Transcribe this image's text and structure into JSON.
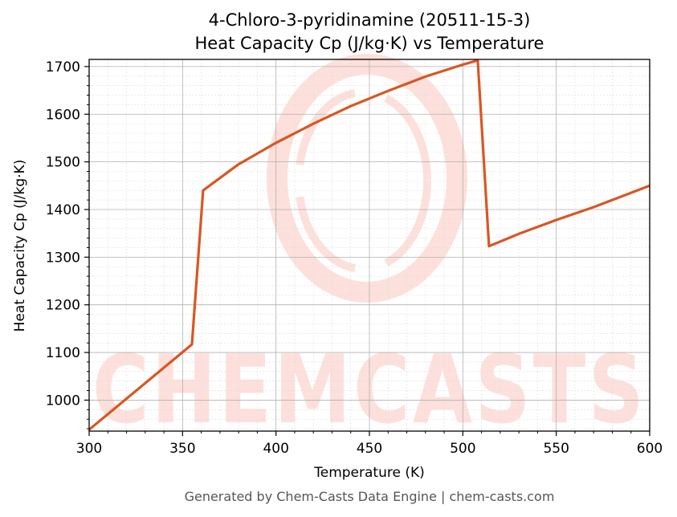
{
  "colors": {
    "line": "#d95622",
    "grid_major": "#b0b0b0",
    "grid_minor": "#dddddd",
    "watermark": "#fde0db",
    "footer_text": "#555555"
  },
  "watermark": {
    "text": "CHEMCASTS"
  },
  "footer": {
    "text": "Generated by Chem-Casts Data Engine | chem-casts.com"
  },
  "chart_data": {
    "type": "line",
    "title": "4-Chloro-3-pyridinamine (20511-15-3)",
    "subtitle": "Heat Capacity Cp (J/kg·K) vs Temperature",
    "xlabel": "Temperature (K)",
    "ylabel": "Heat Capacity Cp (J/kg·K)",
    "xlim": [
      300,
      600
    ],
    "ylim": [
      935,
      1715
    ],
    "xticks": [
      300,
      350,
      400,
      450,
      500,
      550,
      600
    ],
    "yticks": [
      1000,
      1100,
      1200,
      1300,
      1400,
      1500,
      1600,
      1700
    ],
    "grid": true,
    "series": [
      {
        "values": [
          [
            300,
            938
          ],
          [
            355,
            1117
          ],
          [
            361,
            1440
          ],
          [
            380,
            1495
          ],
          [
            400,
            1540
          ],
          [
            420,
            1580
          ],
          [
            440,
            1617
          ],
          [
            460,
            1649
          ],
          [
            480,
            1679
          ],
          [
            500,
            1704
          ],
          [
            508,
            1713
          ],
          [
            514,
            1323
          ],
          [
            530,
            1349
          ],
          [
            550,
            1378
          ],
          [
            570,
            1405
          ],
          [
            600,
            1450
          ]
        ]
      }
    ]
  }
}
